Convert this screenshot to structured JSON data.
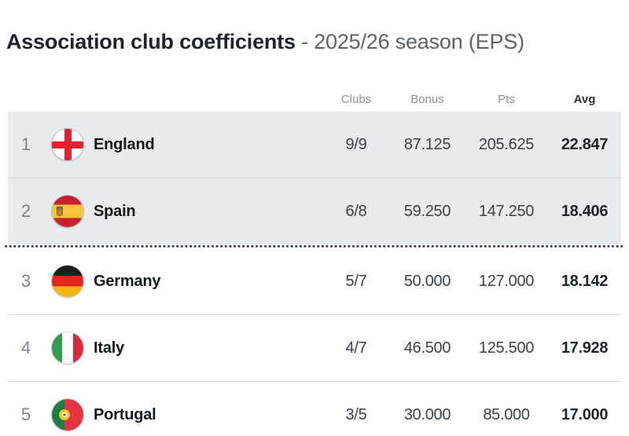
{
  "title": {
    "main": "Association club coefficients ",
    "suffix": "- 2025/26 season (EPS)"
  },
  "table": {
    "columns": [
      {
        "label": "Clubs"
      },
      {
        "label": "Bonus"
      },
      {
        "label": "Pts"
      },
      {
        "label": "Avg"
      }
    ],
    "rows": [
      {
        "rank": "1",
        "country": "England",
        "flag": "england",
        "clubs": "9/9",
        "bonus": "87.125",
        "pts": "205.625",
        "avg": "22.847",
        "highlighted": true
      },
      {
        "rank": "2",
        "country": "Spain",
        "flag": "spain",
        "clubs": "6/8",
        "bonus": "59.250",
        "pts": "147.250",
        "avg": "18.406",
        "highlighted": true
      },
      {
        "rank": "3",
        "country": "Germany",
        "flag": "germany",
        "clubs": "5/7",
        "bonus": "50.000",
        "pts": "127.000",
        "avg": "18.142",
        "highlighted": false
      },
      {
        "rank": "4",
        "country": "Italy",
        "flag": "italy",
        "clubs": "4/7",
        "bonus": "46.500",
        "pts": "125.500",
        "avg": "17.928",
        "highlighted": false
      },
      {
        "rank": "5",
        "country": "Portugal",
        "flag": "portugal",
        "clubs": "3/5",
        "bonus": "30.000",
        "pts": "85.000",
        "avg": "17.000",
        "highlighted": false
      }
    ],
    "cutoff_after_rank": "2"
  },
  "colors": {
    "highlight_row_bg": "#e8ebed",
    "cutoff_dot": "#424c56",
    "title_main": "#1b2531",
    "title_suffix": "#5a646e"
  }
}
